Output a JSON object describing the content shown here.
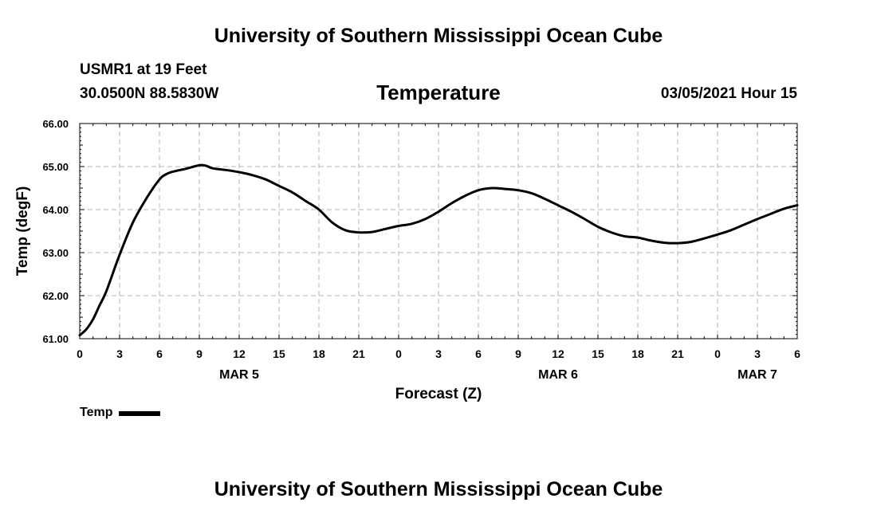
{
  "header": {
    "title": "University of Southern Mississippi Ocean Cube",
    "station": "USMR1 at 19 Feet",
    "coordinates": "30.0500N 88.5830W",
    "datetime": "03/05/2021 Hour 15"
  },
  "footer": {
    "title": "University of Southern Mississippi Ocean Cube"
  },
  "chart_data": {
    "type": "line",
    "title": "Temperature",
    "xlabel": "Forecast (Z)",
    "ylabel": "Temp (degF)",
    "ylim": [
      61.0,
      66.0
    ],
    "xlim": [
      0,
      54
    ],
    "grid": true,
    "legend_position": "bottom-left",
    "x_unit": "hours from 0Z MAR 5",
    "x_ticks": [
      0,
      3,
      6,
      9,
      12,
      15,
      18,
      21,
      24,
      27,
      30,
      33,
      36,
      39,
      42,
      45,
      48,
      51,
      54
    ],
    "x_tick_labels": [
      "0",
      "3",
      "6",
      "9",
      "12",
      "15",
      "18",
      "21",
      "0",
      "3",
      "6",
      "9",
      "12",
      "15",
      "18",
      "21",
      "0",
      "3",
      "6"
    ],
    "y_ticks": [
      61.0,
      62.0,
      63.0,
      64.0,
      65.0,
      66.0
    ],
    "y_tick_labels": [
      "61.00",
      "62.00",
      "63.00",
      "64.00",
      "65.00",
      "66.00"
    ],
    "day_labels": [
      {
        "x": 12,
        "label": "MAR 5"
      },
      {
        "x": 36,
        "label": "MAR 6"
      },
      {
        "x": 51,
        "label": "MAR 7"
      }
    ],
    "series": [
      {
        "name": "Temp",
        "color": "#000000",
        "x": [
          0,
          0.5,
          1,
          1.5,
          2,
          3,
          4,
          5,
          6,
          6.5,
          7,
          8,
          9,
          9.5,
          10,
          11,
          12,
          13,
          14,
          15,
          16,
          17,
          18,
          19,
          20,
          21,
          22,
          23,
          24,
          25,
          26,
          27,
          28,
          29,
          30,
          31,
          32,
          33,
          34,
          35,
          36,
          37,
          38,
          39,
          40,
          41,
          42,
          43,
          44,
          45,
          46,
          47,
          48,
          49,
          50,
          51,
          52,
          53,
          54
        ],
        "y": [
          61.08,
          61.22,
          61.45,
          61.78,
          62.1,
          62.95,
          63.7,
          64.25,
          64.7,
          64.82,
          64.88,
          64.95,
          65.03,
          65.02,
          64.96,
          64.92,
          64.87,
          64.8,
          64.7,
          64.55,
          64.4,
          64.2,
          64.0,
          63.7,
          63.52,
          63.47,
          63.48,
          63.55,
          63.62,
          63.67,
          63.78,
          63.95,
          64.15,
          64.32,
          64.45,
          64.5,
          64.48,
          64.45,
          64.38,
          64.25,
          64.1,
          63.95,
          63.78,
          63.6,
          63.47,
          63.38,
          63.35,
          63.28,
          63.23,
          63.22,
          63.25,
          63.33,
          63.42,
          63.52,
          63.65,
          63.78,
          63.9,
          64.02,
          64.1
        ]
      }
    ]
  }
}
